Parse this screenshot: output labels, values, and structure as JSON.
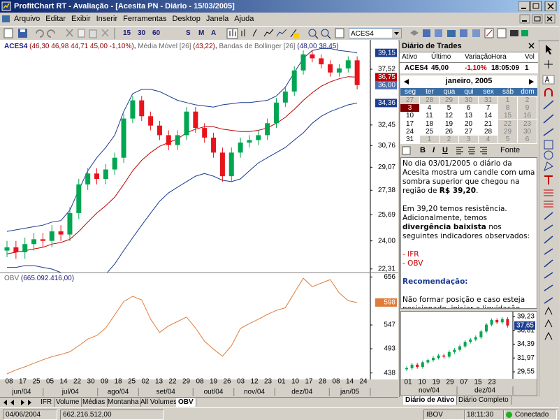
{
  "window": {
    "title": "ProfitChart RT - Avaliação - [Acesita PN - Diário - 15/03/2005]"
  },
  "menu": [
    "Arquivo",
    "Editar",
    "Exibir",
    "Inserir",
    "Ferramentas",
    "Desktop",
    "Janela",
    "Ajuda"
  ],
  "toolbar": {
    "periods": [
      "15",
      "30",
      "60",
      "S",
      "M",
      "A"
    ],
    "symbol": "ACES4"
  },
  "chart_data": [
    {
      "type": "candlestick",
      "name": "ACES4",
      "legend_value": "(46,30 46,98 44,71 45,00 -1,10%)",
      "up_color": "#00a651",
      "down_color": "#e8141b",
      "open": [
        23.4,
        23.6,
        23.3,
        23.8,
        24.1,
        24.0,
        24.6,
        24.4,
        25.8,
        27.8,
        28.6,
        28.2,
        28.9,
        29.8,
        33.0,
        34.6,
        33.2,
        32.4,
        31.6,
        30.8,
        31.6,
        33.6,
        32.2,
        31.4,
        30.2,
        28.4,
        30.2,
        31.0,
        31.2,
        31.6,
        32.6,
        34.4,
        35.4,
        37.4,
        39.0,
        38.6,
        38.0,
        37.2,
        37.6,
        38.4
      ],
      "high": [
        24.0,
        24.0,
        24.2,
        24.5,
        24.5,
        25.0,
        25.0,
        26.2,
        28.2,
        29.0,
        29.0,
        29.3,
        30.2,
        33.4,
        35.0,
        35.0,
        33.6,
        32.8,
        32.0,
        32.0,
        34.0,
        34.0,
        32.6,
        31.8,
        30.6,
        30.6,
        31.4,
        31.6,
        32.0,
        33.0,
        34.8,
        35.8,
        37.8,
        39.4,
        39.4,
        39.0,
        38.4,
        38.0,
        38.8,
        38.8
      ],
      "low": [
        23.0,
        22.9,
        22.9,
        23.4,
        23.6,
        23.6,
        24.0,
        24.0,
        25.4,
        27.4,
        27.8,
        27.8,
        28.5,
        29.4,
        32.6,
        32.8,
        32.0,
        31.2,
        30.4,
        30.4,
        31.2,
        31.8,
        31.0,
        29.8,
        28.0,
        28.0,
        29.8,
        30.6,
        30.8,
        31.2,
        32.2,
        34.0,
        35.0,
        37.0,
        38.2,
        37.6,
        36.8,
        36.8,
        37.2,
        35.6
      ],
      "close": [
        23.6,
        23.3,
        23.8,
        24.1,
        24.0,
        24.6,
        24.4,
        25.8,
        27.8,
        28.6,
        28.2,
        28.9,
        29.8,
        33.0,
        34.6,
        33.2,
        32.4,
        31.6,
        30.8,
        31.6,
        33.6,
        32.2,
        31.4,
        30.2,
        28.4,
        30.2,
        31.0,
        31.2,
        31.6,
        32.6,
        34.4,
        35.4,
        37.4,
        39.0,
        38.6,
        38.0,
        37.2,
        37.6,
        38.4,
        36.0
      ],
      "series": [
        {
          "name": "Média Móvel [26]",
          "legend_value": "(43,22)",
          "color": "#c00000",
          "values": [
            23.2,
            23.3,
            23.4,
            23.5,
            23.6,
            23.8,
            23.9,
            24.1,
            24.6,
            25.2,
            25.8,
            26.3,
            26.9,
            27.8,
            28.8,
            29.6,
            30.2,
            30.7,
            31.0,
            31.3,
            31.8,
            32.1,
            32.3,
            32.3,
            32.1,
            32.0,
            31.9,
            31.9,
            32.0,
            32.2,
            32.6,
            33.1,
            33.8,
            34.6,
            35.3,
            35.9,
            36.3,
            36.6,
            36.8,
            36.75
          ]
        },
        {
          "name": "Bandas de Bollinger [26]",
          "legend_value": "(48,00 38,45)",
          "color": "#1a3a8f",
          "upper": [
            24.6,
            24.7,
            24.8,
            24.9,
            25.0,
            25.2,
            25.3,
            26.0,
            27.4,
            28.8,
            29.8,
            30.6,
            31.6,
            33.6,
            35.2,
            35.6,
            35.6,
            35.4,
            35.0,
            34.6,
            34.4,
            34.2,
            34.1,
            34.0,
            34.2,
            34.3,
            34.4,
            34.4,
            34.5,
            34.6,
            35.0,
            35.8,
            37.2,
            38.6,
            39.4,
            39.6,
            39.6,
            39.4,
            39.3,
            39.15
          ],
          "lower": [
            22.4,
            22.4,
            22.5,
            22.5,
            22.4,
            22.3,
            22.1,
            21.8,
            21.4,
            21.2,
            21.4,
            22.0,
            22.6,
            23.4,
            24.2,
            25.0,
            25.8,
            26.6,
            27.2,
            27.6,
            28.0,
            28.4,
            28.6,
            28.4,
            28.1,
            28.0,
            28.2,
            28.8,
            29.4,
            29.8,
            30.2,
            30.6,
            31.2,
            31.8,
            32.6,
            33.2,
            33.6,
            33.9,
            34.2,
            34.36
          ]
        }
      ],
      "log": true,
      "ylim": [
        22.1,
        39.7
      ],
      "yticks": [
        {
          "value": 37.52,
          "label": "37,52"
        },
        {
          "value": 32.45,
          "label": "32,45"
        },
        {
          "value": 30.76,
          "label": "30,76"
        },
        {
          "value": 29.07,
          "label": "29,07"
        },
        {
          "value": 27.38,
          "label": "27,38"
        },
        {
          "value": 25.69,
          "label": "25,69"
        },
        {
          "value": 24.0,
          "label": "24,00"
        },
        {
          "value": 22.31,
          "label": "22,31"
        }
      ],
      "last_values": [
        {
          "value": 39.15,
          "label": "39,15",
          "color": "#1c3f94"
        },
        {
          "value": 36.75,
          "label": "36,75",
          "color": "#c00000"
        },
        {
          "value": 36.0,
          "label": "36,00",
          "color": "#4a6fb5"
        },
        {
          "value": 34.36,
          "label": "34,36",
          "color": "#1c3f94"
        }
      ],
      "xtick_labels": [
        "08",
        "17",
        "25",
        "05",
        "14",
        "22",
        "30",
        "09",
        "18",
        "25",
        "02",
        "13",
        "22",
        "29",
        "08",
        "19",
        "26",
        "03",
        "12",
        "23",
        "01",
        "10",
        "17",
        "28",
        "08",
        "14",
        "24"
      ],
      "xtick_groups": [
        "jun/04",
        "jul/04",
        "ago/04",
        "set/04",
        "out/04",
        "nov/04",
        "dez/04",
        "jan/05"
      ]
    },
    {
      "type": "line",
      "name": "OBV",
      "legend_value": "(665.092.416,00)",
      "color": "#e07b39",
      "values": [
        436,
        445,
        452,
        460,
        468,
        475,
        480,
        486,
        500,
        515,
        523,
        540,
        570,
        600,
        612,
        604,
        560,
        530,
        545,
        555,
        565,
        540,
        510,
        492,
        476,
        500,
        539,
        550,
        560,
        571,
        580,
        586,
        620,
        653,
        634,
        642,
        650,
        620,
        602,
        598
      ],
      "ylim": [
        428,
        666
      ],
      "yticks": [
        656,
        547,
        493,
        438
      ],
      "last_value": 598
    },
    {
      "type": "candlestick",
      "up_color": "#00a651",
      "down_color": "#e8141b",
      "open": [
        30.0,
        30.2,
        30.8,
        30.4,
        31.2,
        31.6,
        32.0,
        32.4,
        32.2,
        33.0,
        33.4,
        34.0,
        34.8,
        35.2,
        35.6,
        36.6,
        37.8,
        38.6,
        38.2,
        38.8
      ],
      "high": [
        30.5,
        31.1,
        31.1,
        31.5,
        31.9,
        32.3,
        32.7,
        32.7,
        33.3,
        33.7,
        34.3,
        35.1,
        35.5,
        35.9,
        36.9,
        38.1,
        38.9,
        38.9,
        39.1,
        39.1
      ],
      "low": [
        29.7,
        29.9,
        30.1,
        30.1,
        30.9,
        31.3,
        31.7,
        31.9,
        31.9,
        32.7,
        33.1,
        33.7,
        34.5,
        34.9,
        35.3,
        36.3,
        37.5,
        37.9,
        37.9,
        37.3
      ],
      "close": [
        30.2,
        30.8,
        30.4,
        31.2,
        31.6,
        32.0,
        32.4,
        32.2,
        33.0,
        33.4,
        34.0,
        34.8,
        35.2,
        35.6,
        36.6,
        37.8,
        38.6,
        38.2,
        38.8,
        37.65
      ],
      "ylim": [
        28.7,
        39.7
      ],
      "yticks": [
        {
          "value": 39.23,
          "label": "39,23"
        },
        {
          "value": 36.81,
          "label": "36,81"
        },
        {
          "value": 34.39,
          "label": "34,39"
        },
        {
          "value": 31.97,
          "label": "31,97"
        },
        {
          "value": 29.55,
          "label": "29,55"
        }
      ],
      "last_values": [
        {
          "value": 37.65,
          "label": "37,65",
          "color": "#1c3f94"
        }
      ],
      "xtick_labels": [
        "01",
        "10",
        "19",
        "29",
        "07",
        "15",
        "23"
      ],
      "xtick_groups": [
        "nov/04",
        "dez/04"
      ]
    }
  ],
  "trades": {
    "title": "Diário de Trades",
    "columns": [
      "Ativo",
      "Último",
      "Variação",
      "Hora",
      "Vol"
    ],
    "row": [
      "ACES4",
      "45,00",
      "-1,10%",
      "18:05:09",
      "1"
    ]
  },
  "calendar": {
    "month": "janeiro, 2005",
    "weekdays": [
      "seg",
      "ter",
      "qua",
      "qui",
      "sex",
      "sáb",
      "dom"
    ],
    "weeks": [
      [
        27,
        28,
        29,
        30,
        31,
        1,
        2
      ],
      [
        3,
        4,
        5,
        6,
        7,
        8,
        9
      ],
      [
        10,
        11,
        12,
        13,
        14,
        15,
        16
      ],
      [
        17,
        18,
        19,
        20,
        21,
        22,
        23
      ],
      [
        24,
        25,
        26,
        27,
        28,
        29,
        30
      ],
      [
        31,
        1,
        2,
        3,
        4,
        5,
        6
      ]
    ]
  },
  "editor": {
    "buttons": [
      "B",
      "I",
      "U"
    ],
    "font": "Fonte"
  },
  "note": {
    "p1": [
      "No dia 03/01/2005 o diário da Acesita mostra um candle com uma sombra superior que chegou na região de ",
      "R$ 39,20",
      "."
    ],
    "p2": [
      "Em 39,20 temos resistência. Adicionalmente, temos ",
      "divergência baixista",
      " nos seguintes indicadores observados:"
    ],
    "items": [
      "- IFR",
      "- OBV"
    ],
    "heading": "Recomendação:",
    "p3": "Não formar posição e caso esteja posicionado, iniciar  a liquidação."
  },
  "panel_tabs": [
    "Diário de Ativo",
    "Diário Completo"
  ],
  "chart_tabs": [
    "IFR",
    "Volume",
    "Médias",
    "Montanha",
    "All Volumes",
    "OBV"
  ],
  "status": [
    "04/06/2004",
    "662.216.512,00",
    "IBOV",
    "18:11:30",
    "Conectado"
  ]
}
